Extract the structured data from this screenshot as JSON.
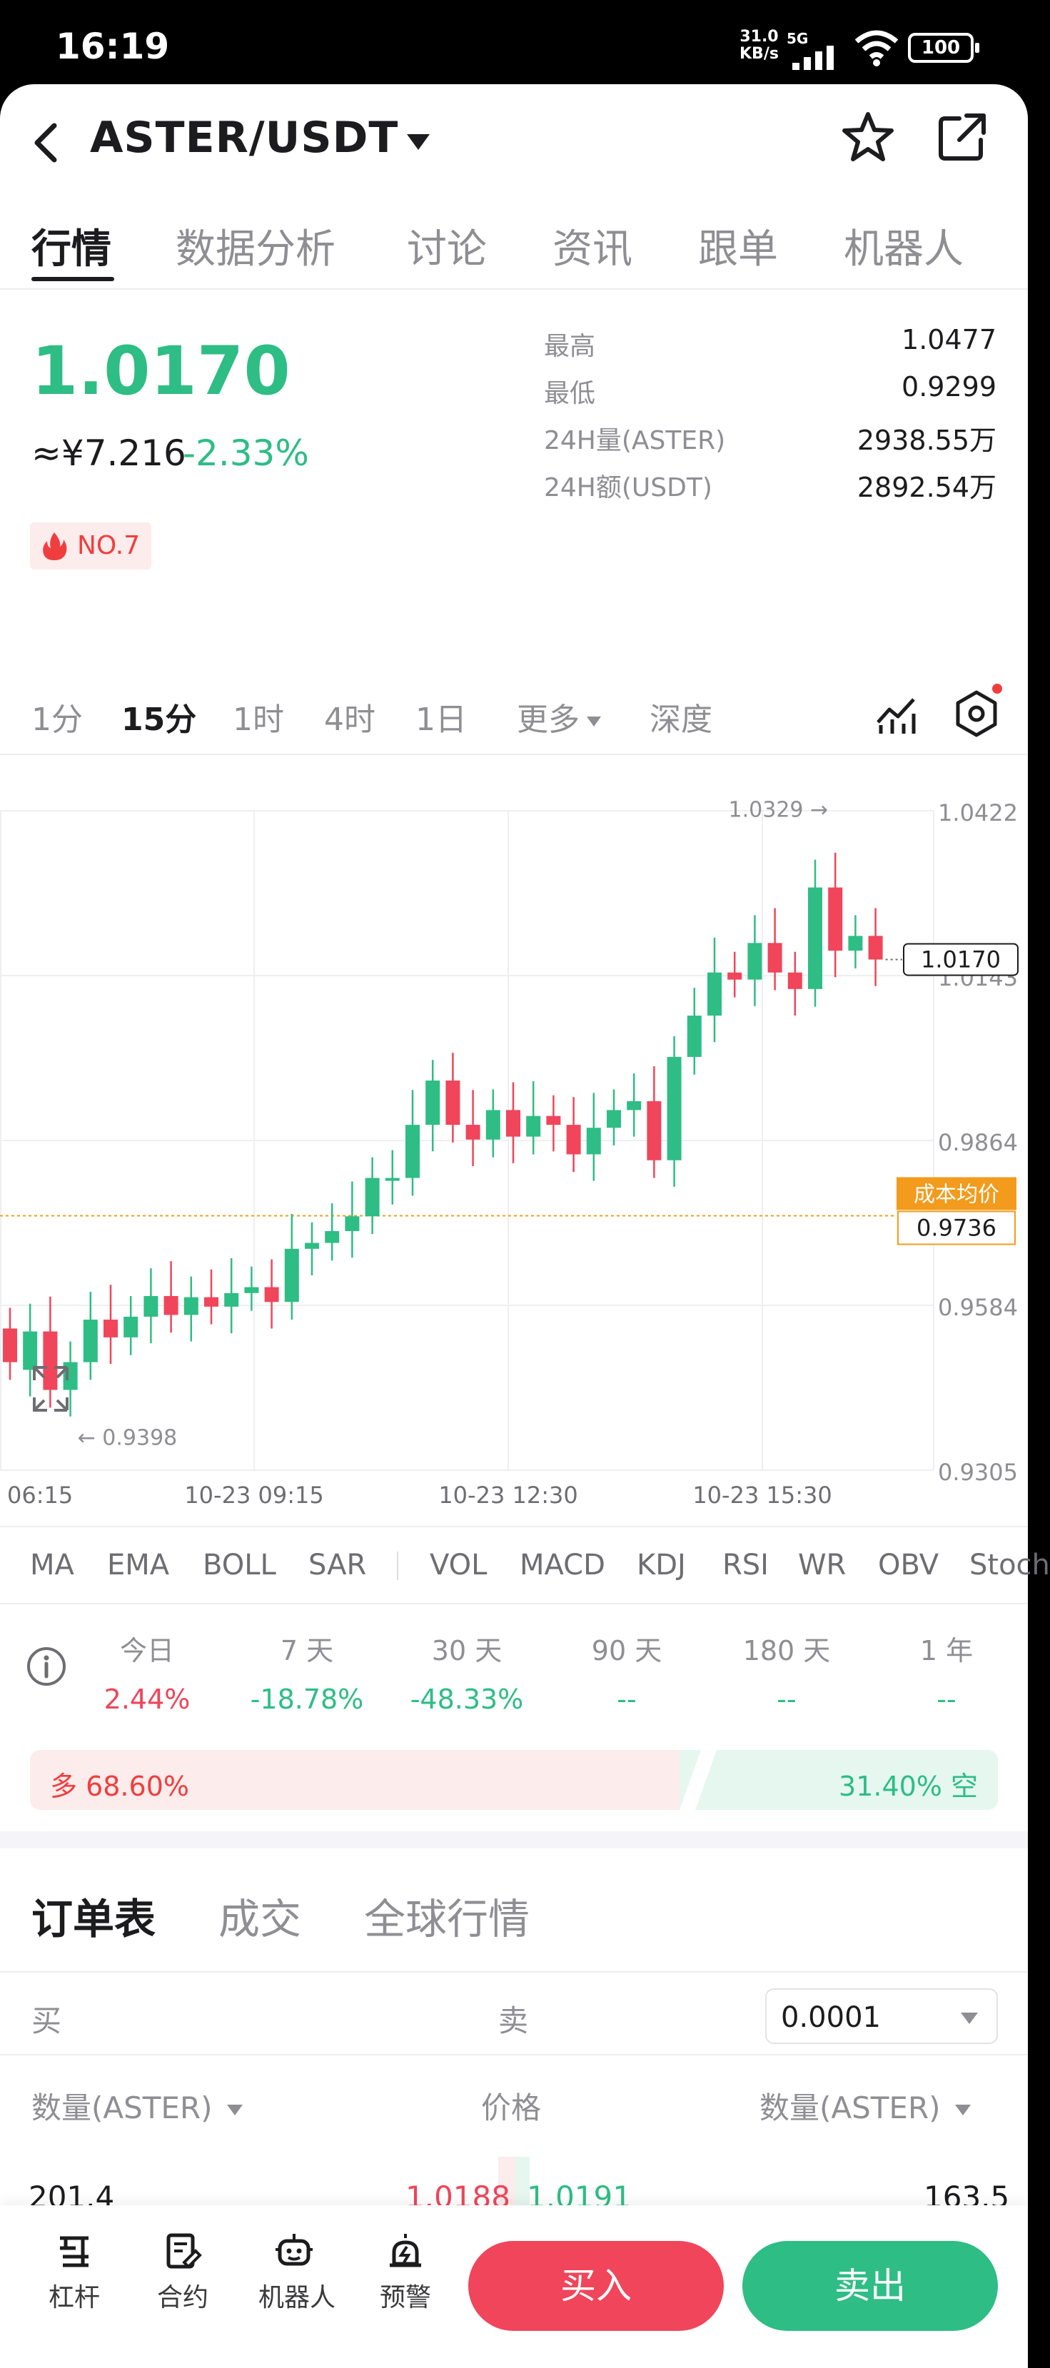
{
  "status_bar": {
    "time": "16:19",
    "net_speed": "31.0",
    "net_unit": "KB/s",
    "network": "5G",
    "battery": "100"
  },
  "header": {
    "pair": "ASTER/USDT",
    "icons": [
      "back-icon",
      "caret-down-icon",
      "star-icon",
      "share-icon"
    ]
  },
  "main_tabs": [
    "行情",
    "数据分析",
    "讨论",
    "资讯",
    "跟单",
    "机器人"
  ],
  "ticker": {
    "price": "1.0170",
    "cny": "≈¥7.216",
    "change": "-2.33%",
    "rank": "NO.7",
    "stats": [
      {
        "label": "最高",
        "value": "1.0477"
      },
      {
        "label": "最低",
        "value": "0.9299"
      },
      {
        "label": "24H量(ASTER)",
        "value": "2938.55万"
      },
      {
        "label": "24H额(USDT)",
        "value": "2892.54万"
      }
    ]
  },
  "intervals": {
    "items": [
      "1分",
      "15分",
      "1时",
      "4时",
      "1日",
      "更多",
      "深度"
    ],
    "active": "15分"
  },
  "chart": {
    "y_ticks": [
      "1.0422",
      "1.0143",
      "0.9864",
      "0.9584",
      "0.9305"
    ],
    "x_ticks": [
      "06:15",
      "10-23 09:15",
      "10-23 12:30",
      "10-23 15:30"
    ],
    "high_marker": "1.0329 →",
    "low_marker": "← 0.9398",
    "current_price": "1.0170",
    "cost_label": "成本均价",
    "cost_value": "0.9736",
    "colors": {
      "up": "#2ebd85",
      "down": "#f0455a",
      "cost": "#f29b1c"
    }
  },
  "chart_data": {
    "type": "candlestick",
    "x_tick_labels": [
      "06:15",
      "10-23 09:15",
      "10-23 12:30",
      "10-23 15:30"
    ],
    "ylim": [
      0.9305,
      1.0422
    ],
    "y_tick_labels": [
      "1.0422",
      "1.0143",
      "0.9864",
      "0.9584",
      "0.9305"
    ],
    "candles": [
      [
        0.9545,
        0.9488
      ],
      [
        0.9475,
        0.954
      ],
      [
        0.954,
        0.9441
      ],
      [
        0.9441,
        0.9488
      ],
      [
        0.9488,
        0.956
      ],
      [
        0.956,
        0.953
      ],
      [
        0.953,
        0.9565
      ],
      [
        0.9565,
        0.96
      ],
      [
        0.96,
        0.9568
      ],
      [
        0.9568,
        0.9598
      ],
      [
        0.9598,
        0.9582
      ],
      [
        0.9582,
        0.9605
      ],
      [
        0.9605,
        0.9615
      ],
      [
        0.9615,
        0.959
      ],
      [
        0.959,
        0.968
      ],
      [
        0.968,
        0.969
      ],
      [
        0.969,
        0.971
      ],
      [
        0.971,
        0.9735
      ],
      [
        0.9735,
        0.98
      ],
      [
        0.98,
        0.98
      ],
      [
        0.98,
        0.989
      ],
      [
        0.989,
        0.9965
      ],
      [
        0.9965,
        0.989
      ],
      [
        0.989,
        0.9865
      ],
      [
        0.9865,
        0.9915
      ],
      [
        0.9915,
        0.987
      ],
      [
        0.987,
        0.9905
      ],
      [
        0.9905,
        0.989
      ],
      [
        0.989,
        0.984
      ],
      [
        0.984,
        0.9885
      ],
      [
        0.9885,
        0.9915
      ],
      [
        0.9915,
        0.993
      ],
      [
        0.993,
        0.983
      ],
      [
        0.983,
        1.0005
      ],
      [
        1.0005,
        1.0075
      ],
      [
        1.0075,
        1.0148
      ],
      [
        1.0148,
        1.0136
      ],
      [
        1.0136,
        1.0198
      ],
      [
        1.0198,
        1.0148
      ],
      [
        1.0148,
        1.012
      ],
      [
        1.012,
        1.0292
      ],
      [
        1.0292,
        1.0185
      ],
      [
        1.0185,
        1.021
      ],
      [
        1.021,
        1.017
      ]
    ],
    "current_price": 1.017,
    "cost_basis": 0.9736
  },
  "indicators": [
    "MA",
    "EMA",
    "BOLL",
    "SAR",
    "VOL",
    "MACD",
    "KDJ",
    "RSI",
    "WR",
    "OBV",
    "Stoch"
  ],
  "performance": [
    {
      "label": "今日",
      "value": "2.44%",
      "dir": "up"
    },
    {
      "label": "7 天",
      "value": "-18.78%",
      "dir": "down"
    },
    {
      "label": "30 天",
      "value": "-48.33%",
      "dir": "down"
    },
    {
      "label": "90 天",
      "value": "--",
      "dir": "flat"
    },
    {
      "label": "180 天",
      "value": "--",
      "dir": "flat"
    },
    {
      "label": "1 年",
      "value": "--",
      "dir": "flat"
    }
  ],
  "long_short": {
    "long": "多 68.60%",
    "short": "31.40% 空",
    "long_ratio": 0.686
  },
  "orderbook": {
    "tabs": [
      "订单表",
      "成交",
      "全球行情"
    ],
    "buy_label": "买",
    "sell_label": "卖",
    "precision": "0.0001",
    "col_qty_left": "数量(ASTER)",
    "col_price": "价格",
    "col_qty_right": "数量(ASTER)",
    "row": {
      "bid_qty": "201.4",
      "bid_price": "1.0188",
      "ask_price": "1.0191",
      "ask_qty": "163.5"
    }
  },
  "bottom_nav": {
    "items": [
      {
        "label": "杠杆",
        "icon": "leverage-icon"
      },
      {
        "label": "合约",
        "icon": "contract-icon"
      },
      {
        "label": "机器人",
        "icon": "robot-icon"
      },
      {
        "label": "预警",
        "icon": "alarm-icon"
      }
    ],
    "buy": "买入",
    "sell": "卖出"
  }
}
